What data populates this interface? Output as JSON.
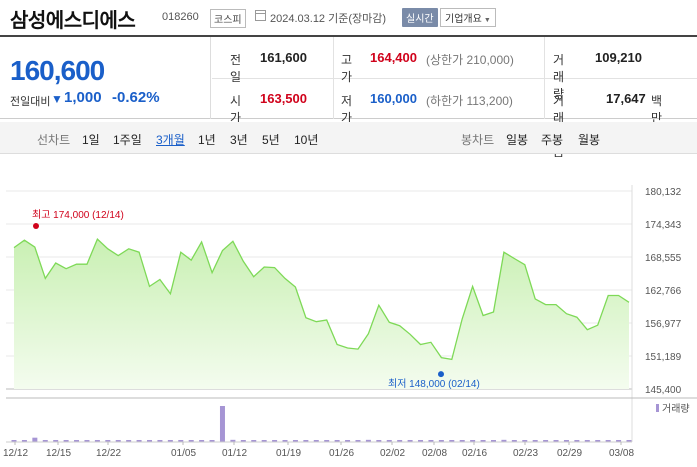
{
  "header": {
    "title": "삼성에스디에스",
    "code": "018260",
    "market": "코스피",
    "date": "2024.03.12",
    "date_basis": "기준(장마감)",
    "realtime_label": "실시간",
    "company_button": "기업개요"
  },
  "summary": {
    "current_price": "160,600",
    "diff_label": "전일대비",
    "diff_value": "1,000",
    "diff_rate": "-0.62%",
    "prev_close_label": "전일",
    "prev_close": "161,600",
    "high_label": "고가",
    "high": "164,400",
    "upper_limit": "(상한가 210,000)",
    "volume_label": "거래량",
    "volume": "109,210",
    "open_label": "시가",
    "open": "163,500",
    "low_label": "저가",
    "low": "160,000",
    "lower_limit": "(하한가 113,200)",
    "amount_label": "거래대금",
    "amount": "17,647",
    "amount_unit": "백만"
  },
  "tabs": {
    "line_chart_label": "선차트",
    "periods": [
      "1일",
      "1주일",
      "3개월",
      "1년",
      "3년",
      "5년",
      "10년"
    ],
    "active_period": "3개월",
    "candle_chart_label": "봉차트",
    "candles": [
      "일봉",
      "주봉",
      "월봉"
    ]
  },
  "colors": {
    "price_down": "#1a5fc9",
    "price_up": "#d0021b",
    "line": "#7ed957",
    "area": "#e2f7d6",
    "volume_bar": "#a695d4"
  },
  "chart_data": {
    "type": "area",
    "y_ticks": [
      "180,132",
      "174,343",
      "168,555",
      "162,766",
      "156,977",
      "151,189",
      "145,400"
    ],
    "ylim": [
      145400,
      180132
    ],
    "x_ticks": [
      "12/12",
      "12/15",
      "12/22",
      "01/05",
      "01/12",
      "01/19",
      "01/26",
      "02/02",
      "02/08",
      "02/16",
      "02/23",
      "02/29",
      "03/08"
    ],
    "max_annotation": "최고 174,000 (12/14)",
    "min_annotation": "최저 148,000 (02/14)",
    "max_value": 174000,
    "min_value": 148000,
    "volume_legend": "거래량",
    "prices": [
      170200,
      171500,
      170300,
      164800,
      167500,
      166500,
      167300,
      167300,
      171700,
      170000,
      168800,
      170000,
      169400,
      163400,
      164600,
      162100,
      169400,
      168000,
      171200,
      165800,
      169700,
      171300,
      167800,
      165100,
      166800,
      166700,
      164800,
      163300,
      157900,
      157200,
      157500,
      153200,
      152600,
      152400,
      155100,
      160100,
      157100,
      156500,
      155000,
      153200,
      153600,
      150900,
      150600,
      157700,
      163400,
      158300,
      158900,
      169400,
      168300,
      167200,
      161200,
      160200,
      160200,
      158600,
      158000,
      155800,
      156600,
      161800,
      161800,
      160600
    ],
    "volumes": [
      40,
      45,
      120,
      35,
      30,
      25,
      50,
      30,
      35,
      25,
      20,
      30,
      25,
      40,
      30,
      20,
      35,
      30,
      25,
      30,
      1000,
      60,
      45,
      40,
      50,
      35,
      30,
      25,
      30,
      35,
      30,
      25,
      35,
      30,
      60,
      40,
      30,
      35,
      30,
      25,
      30,
      40,
      35,
      45,
      50,
      40,
      30,
      60,
      40,
      35,
      30,
      35,
      30,
      25,
      30,
      35,
      30,
      40,
      35,
      30
    ]
  }
}
